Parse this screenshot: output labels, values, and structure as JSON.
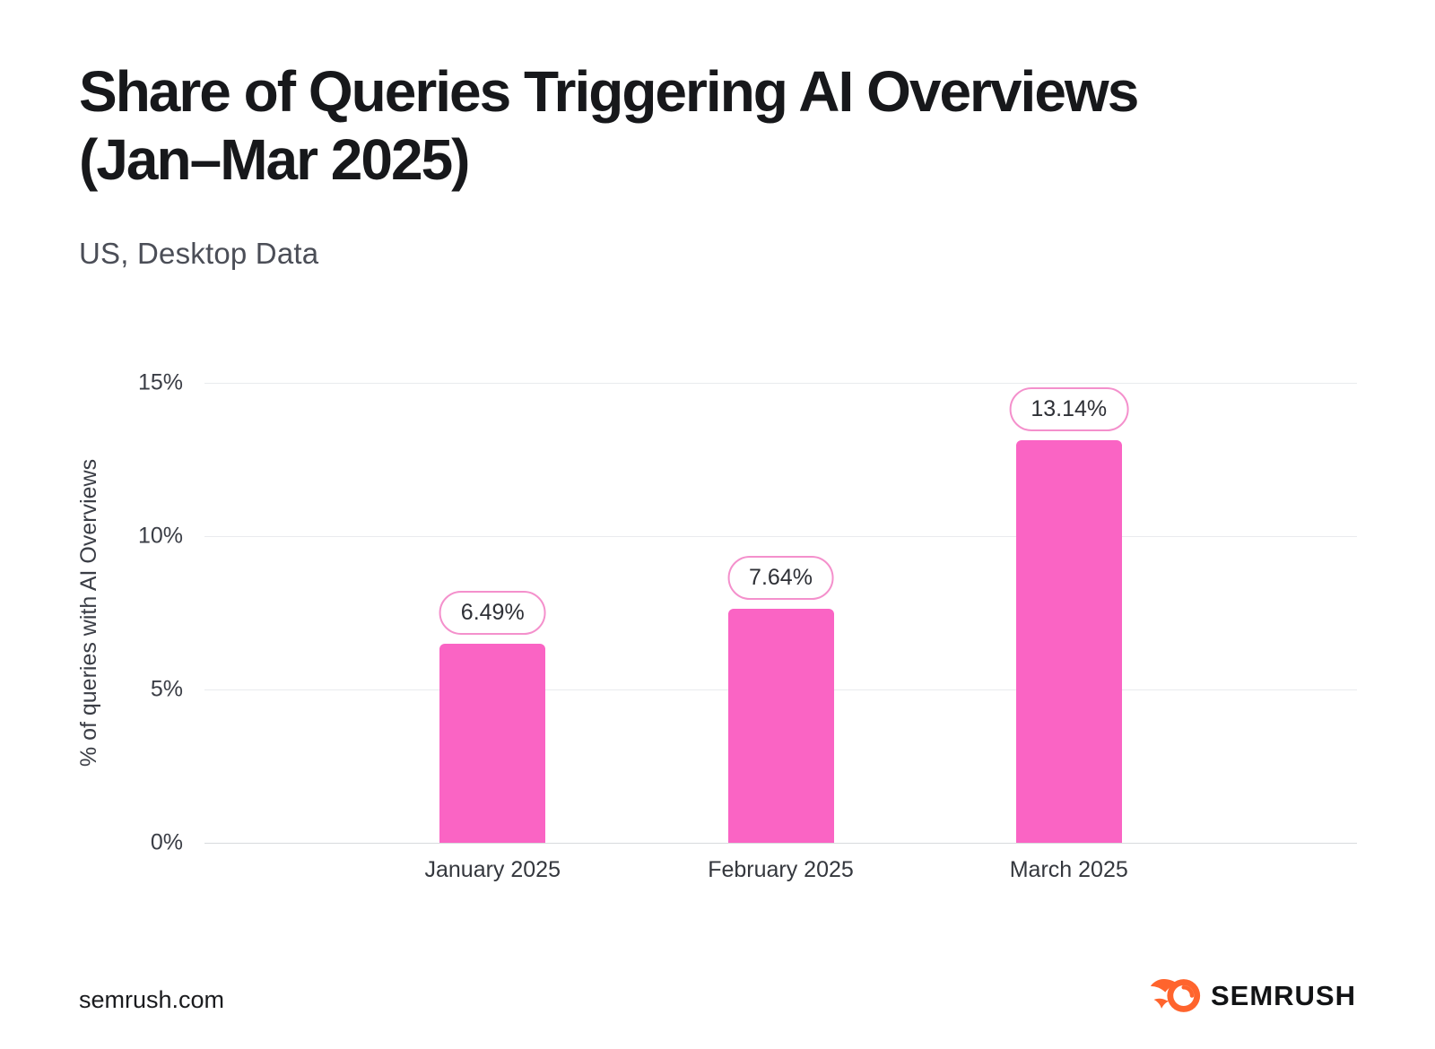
{
  "page": {
    "title_line1": "Share of Queries Triggering AI Overviews",
    "title_line2": "(Jan–Mar 2025)",
    "subtitle": "US, Desktop Data"
  },
  "chart_data": {
    "type": "bar",
    "title": "Share of Queries Triggering AI Overviews (Jan–Mar 2025)",
    "subtitle": "US, Desktop Data",
    "categories": [
      "January 2025",
      "February 2025",
      "March 2025"
    ],
    "values": [
      6.49,
      7.64,
      13.14
    ],
    "value_labels": [
      "6.49%",
      "7.64%",
      "13.14%"
    ],
    "ylabel": "% of queries with AI Overviews",
    "xlabel": "",
    "ylim": [
      0,
      15
    ],
    "yticks": [
      0,
      5,
      10,
      15
    ],
    "ytick_labels": [
      "0%",
      "5%",
      "10%",
      "15%"
    ],
    "grid": "horizontal-only",
    "legend": "none",
    "bar_color": "#FA64C4",
    "label_pill": {
      "background": "#FFFFFF",
      "border_color": "#F490CC",
      "text_color": "#2E3036"
    },
    "gridline_color": "#E9EBEE",
    "axis_line_color": "#D8DADD"
  },
  "footer": {
    "website": "semrush.com",
    "brand_wordmark": "SEMRUSH",
    "brand_icon": "semrush-fireball-icon",
    "brand_color": "#FF642D"
  }
}
